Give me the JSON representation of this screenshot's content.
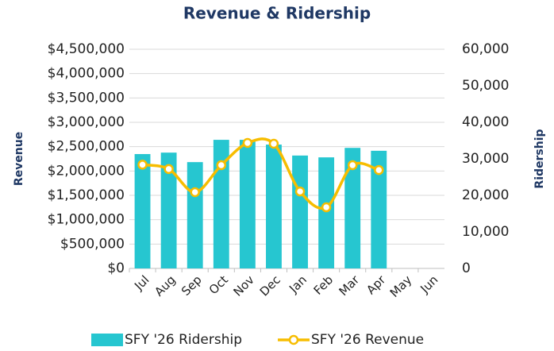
{
  "chart_data": {
    "type": "bar-line",
    "title": "Revenue & Ridership",
    "y_label": "Revenue",
    "y2_label": "Ridership",
    "categories": [
      "Jul",
      "Aug",
      "Sep",
      "Oct",
      "Nov",
      "Dec",
      "Jan",
      "Feb",
      "Mar",
      "Apr",
      "May",
      "Jun"
    ],
    "series": [
      {
        "name": "SFY '26 Ridership",
        "type": "bar",
        "axis": "y2",
        "color": "#26c6d0",
        "values": [
          31300,
          31700,
          29100,
          35200,
          35200,
          33900,
          30900,
          30400,
          33000,
          32200,
          null,
          null
        ]
      },
      {
        "name": "SFY '26 Revenue",
        "type": "line",
        "axis": "y",
        "color": "#f7bd00",
        "values": [
          2130000,
          2040000,
          1565000,
          2120000,
          2576000,
          2560000,
          1580000,
          1255000,
          2120000,
          2020000,
          null,
          null
        ]
      }
    ],
    "ylim": [
      0,
      4500000
    ],
    "yticks": [
      {
        "value": 0,
        "label": "$0"
      },
      {
        "value": 500000,
        "label": "$500,000"
      },
      {
        "value": 1000000,
        "label": "$1,000,000"
      },
      {
        "value": 1500000,
        "label": "$1,500,000"
      },
      {
        "value": 2000000,
        "label": "$2,000,000"
      },
      {
        "value": 2500000,
        "label": "$2,500,000"
      },
      {
        "value": 3000000,
        "label": "$3,000,000"
      },
      {
        "value": 3500000,
        "label": "$3,500,000"
      },
      {
        "value": 4000000,
        "label": "$4,000,000"
      },
      {
        "value": 4500000,
        "label": "$4,500,000"
      }
    ],
    "y2lim": [
      0,
      60000
    ],
    "y2ticks": [
      0,
      {
        "value": 10000,
        "label": "10,000"
      },
      {
        "value": 20000,
        "label": "20,000"
      },
      {
        "value": 30000,
        "label": "30,000"
      },
      {
        "value": 40000,
        "label": "40,000"
      },
      {
        "value": 50000,
        "label": "50,000"
      },
      {
        "value": 60000,
        "label": "60,000"
      }
    ],
    "grid": true,
    "legend": "bottom"
  }
}
